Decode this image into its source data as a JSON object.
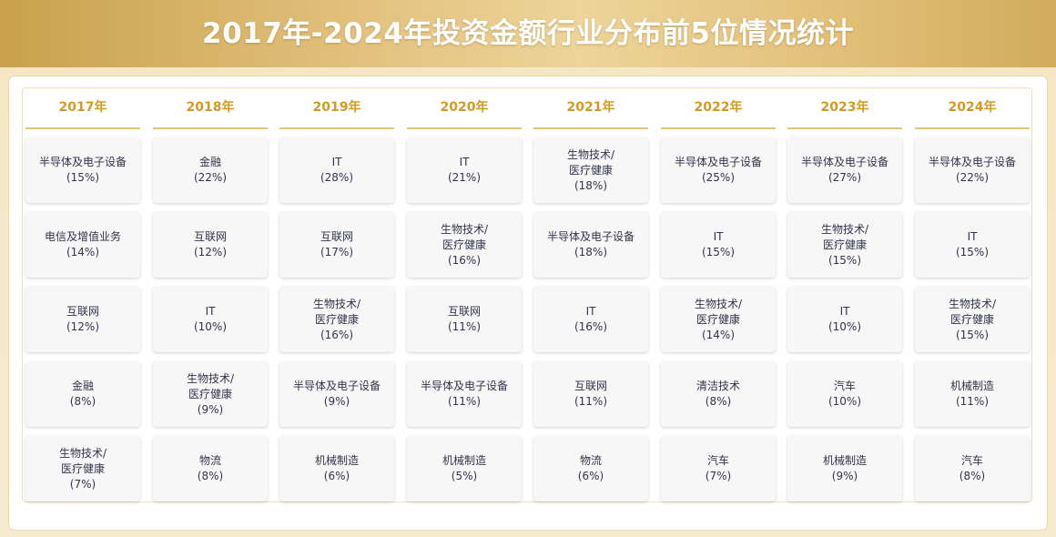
{
  "title": "2017年-2024年投资金额行业分布前5位情况统计",
  "colors": {
    "banner": "#e3c27f",
    "header_text": "#d29a22",
    "cell_text": "#33334d"
  },
  "chart_data": {
    "type": "table",
    "title": "2017年-2024年投资金额行业分布前5位情况统计",
    "columns": [
      {
        "year": "2017年",
        "cells": [
          {
            "lines": [
              "半导体及电子设备"
            ],
            "value": "(15%)"
          },
          {
            "lines": [
              "电信及增值业务"
            ],
            "value": "(14%)"
          },
          {
            "lines": [
              "互联网"
            ],
            "value": "(12%)"
          },
          {
            "lines": [
              "金融"
            ],
            "value": "(8%)"
          },
          {
            "lines": [
              "生物技术/",
              "医疗健康"
            ],
            "value": "(7%)"
          }
        ]
      },
      {
        "year": "2018年",
        "cells": [
          {
            "lines": [
              "金融"
            ],
            "value": "(22%)"
          },
          {
            "lines": [
              "互联网"
            ],
            "value": "(12%)"
          },
          {
            "lines": [
              "IT"
            ],
            "value": "(10%)"
          },
          {
            "lines": [
              "生物技术/",
              "医疗健康"
            ],
            "value": "(9%)"
          },
          {
            "lines": [
              "物流"
            ],
            "value": "(8%)"
          }
        ]
      },
      {
        "year": "2019年",
        "cells": [
          {
            "lines": [
              "IT"
            ],
            "value": "(28%)"
          },
          {
            "lines": [
              "互联网"
            ],
            "value": "(17%)"
          },
          {
            "lines": [
              "生物技术/",
              "医疗健康"
            ],
            "value": "(16%)"
          },
          {
            "lines": [
              "半导体及电子设备"
            ],
            "value": "(9%)"
          },
          {
            "lines": [
              "机械制造"
            ],
            "value": "(6%)"
          }
        ]
      },
      {
        "year": "2020年",
        "cells": [
          {
            "lines": [
              "IT"
            ],
            "value": "(21%)"
          },
          {
            "lines": [
              "生物技术/",
              "医疗健康"
            ],
            "value": "(16%)"
          },
          {
            "lines": [
              "互联网"
            ],
            "value": "(11%)"
          },
          {
            "lines": [
              "半导体及电子设备"
            ],
            "value": "(11%)"
          },
          {
            "lines": [
              "机械制造"
            ],
            "value": "(5%)"
          }
        ]
      },
      {
        "year": "2021年",
        "cells": [
          {
            "lines": [
              "生物技术/",
              "医疗健康"
            ],
            "value": "(18%)"
          },
          {
            "lines": [
              "半导体及电子设备"
            ],
            "value": "(18%)"
          },
          {
            "lines": [
              "IT"
            ],
            "value": "(16%)"
          },
          {
            "lines": [
              "互联网"
            ],
            "value": "(11%)"
          },
          {
            "lines": [
              "物流"
            ],
            "value": "(6%)"
          }
        ]
      },
      {
        "year": "2022年",
        "cells": [
          {
            "lines": [
              "半导体及电子设备"
            ],
            "value": "(25%)"
          },
          {
            "lines": [
              "IT"
            ],
            "value": "(15%)"
          },
          {
            "lines": [
              "生物技术/",
              "医疗健康"
            ],
            "value": "(14%)"
          },
          {
            "lines": [
              "清洁技术"
            ],
            "value": "(8%)"
          },
          {
            "lines": [
              "汽车"
            ],
            "value": "(7%)"
          }
        ]
      },
      {
        "year": "2023年",
        "cells": [
          {
            "lines": [
              "半导体及电子设备"
            ],
            "value": "(27%)"
          },
          {
            "lines": [
              "生物技术/",
              "医疗健康"
            ],
            "value": "(15%)"
          },
          {
            "lines": [
              "IT"
            ],
            "value": "(10%)"
          },
          {
            "lines": [
              "汽车"
            ],
            "value": "(10%)"
          },
          {
            "lines": [
              "机械制造"
            ],
            "value": "(9%)"
          }
        ]
      },
      {
        "year": "2024年",
        "cells": [
          {
            "lines": [
              "半导体及电子设备"
            ],
            "value": "(22%)"
          },
          {
            "lines": [
              "IT"
            ],
            "value": "(15%)"
          },
          {
            "lines": [
              "生物技术/",
              "医疗健康"
            ],
            "value": "(15%)"
          },
          {
            "lines": [
              "机械制造"
            ],
            "value": "(11%)"
          },
          {
            "lines": [
              "汽车"
            ],
            "value": "(8%)"
          }
        ]
      }
    ]
  }
}
